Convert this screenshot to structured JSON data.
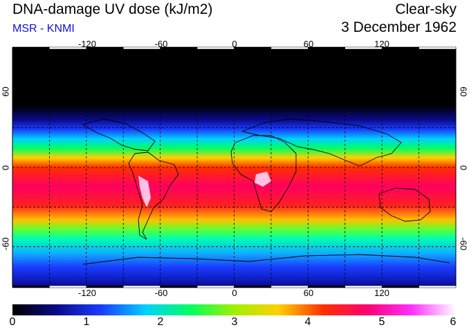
{
  "header": {
    "title": "DNA-damage UV dose (kJ/m2)",
    "source": "MSR - KNMI",
    "condition": "Clear-sky",
    "date": "3 December 1962"
  },
  "map": {
    "lon_labels": [
      "-120",
      "-60",
      "0",
      "60",
      "120"
    ],
    "lat_labels_left": [
      "60",
      "0",
      "-60"
    ],
    "lat_labels_right": [
      "60",
      "0",
      "-60"
    ],
    "grid_lons": [
      -150,
      -120,
      -90,
      -60,
      -30,
      0,
      30,
      60,
      90,
      120,
      150
    ],
    "grid_lats": [
      60,
      30,
      0,
      -30,
      -60
    ],
    "extent": {
      "lon_min": -180,
      "lon_max": 180,
      "lat_min": -90,
      "lat_max": 90
    }
  },
  "colorbar": {
    "min": 0,
    "max": 6,
    "tick_labels": [
      "0",
      "1",
      "2",
      "3",
      "4",
      "5",
      "6"
    ],
    "colors": [
      "#000000",
      "#0a0a8a",
      "#1a3cff",
      "#00d0ff",
      "#00ff60",
      "#a0f000",
      "#ffd000",
      "#ff3000",
      "#ff0070",
      "#ff30ff",
      "#ffffff"
    ]
  },
  "colors": {
    "title_text": "#000000",
    "source_text": "#1010e0",
    "grid": "#000000"
  }
}
